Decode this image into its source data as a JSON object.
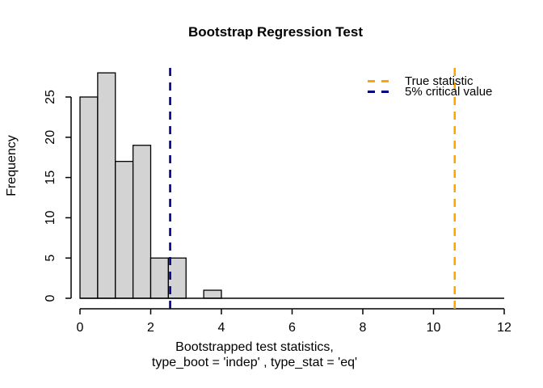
{
  "chart_data": {
    "type": "bar",
    "subtype": "histogram",
    "title": "Bootstrap Regression Test",
    "ylabel": "Frequency",
    "xlabel_line1": "Bootstrapped test statistics,",
    "xlabel_line2": "type_boot = 'indep' , type_stat = 'eq'",
    "bins": {
      "start": 0,
      "width": 0.5,
      "counts": [
        25,
        28,
        17,
        19,
        5,
        5,
        0,
        1
      ]
    },
    "x_axis": {
      "ticks": [
        0,
        2,
        4,
        6,
        8,
        10,
        12
      ],
      "range": [
        0,
        12
      ]
    },
    "y_axis": {
      "ticks": [
        0,
        5,
        10,
        15,
        20,
        25
      ],
      "range": [
        0,
        28
      ]
    },
    "vlines": [
      {
        "name": "critical-value",
        "x": 2.55,
        "color": "#000080",
        "style": "dashed"
      },
      {
        "name": "true-statistic",
        "x": 10.6,
        "color": "#FFA500",
        "style": "dashed"
      }
    ],
    "legend": [
      {
        "label": "True statistic",
        "color": "#FFA500"
      },
      {
        "label": "5% critical value",
        "color": "#000080"
      }
    ],
    "colors": {
      "bar_fill": "#D3D3D3",
      "bar_border": "#000000",
      "axis": "#000000",
      "text": "#000000"
    },
    "grid": false,
    "legend_position": "top-right"
  }
}
